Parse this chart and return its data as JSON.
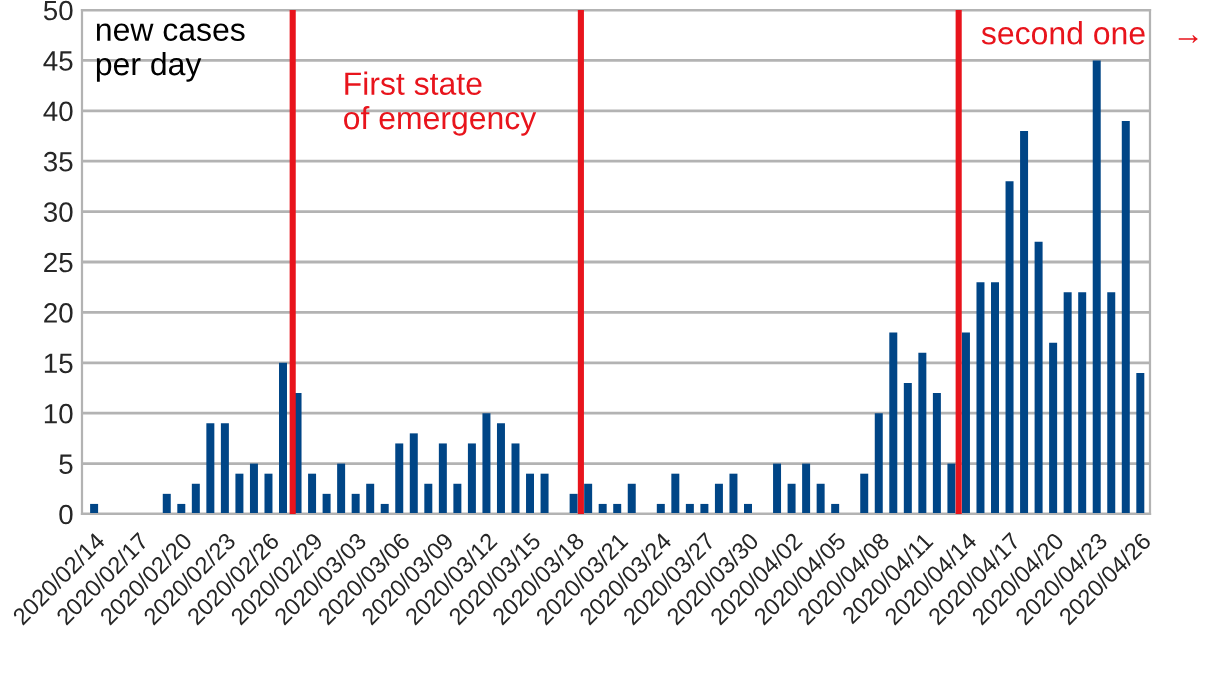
{
  "chart_data": {
    "type": "bar",
    "ylabel": "new cases\nper day",
    "x": [
      "2020-02-14",
      "2020-02-15",
      "2020-02-16",
      "2020-02-17",
      "2020-02-18",
      "2020-02-19",
      "2020-02-20",
      "2020-02-21",
      "2020-02-22",
      "2020-02-23",
      "2020-02-24",
      "2020-02-25",
      "2020-02-26",
      "2020-02-27",
      "2020-02-28",
      "2020-02-29",
      "2020-03-01",
      "2020-03-02",
      "2020-03-03",
      "2020-03-04",
      "2020-03-05",
      "2020-03-06",
      "2020-03-07",
      "2020-03-08",
      "2020-03-09",
      "2020-03-10",
      "2020-03-11",
      "2020-03-12",
      "2020-03-13",
      "2020-03-14",
      "2020-03-15",
      "2020-03-16",
      "2020-03-17",
      "2020-03-18",
      "2020-03-19",
      "2020-03-20",
      "2020-03-21",
      "2020-03-22",
      "2020-03-23",
      "2020-03-24",
      "2020-03-25",
      "2020-03-26",
      "2020-03-27",
      "2020-03-28",
      "2020-03-29",
      "2020-03-30",
      "2020-03-31",
      "2020-04-01",
      "2020-04-02",
      "2020-04-03",
      "2020-04-04",
      "2020-04-05",
      "2020-04-06",
      "2020-04-07",
      "2020-04-08",
      "2020-04-09",
      "2020-04-10",
      "2020-04-11",
      "2020-04-12",
      "2020-04-13",
      "2020-04-14",
      "2020-04-15",
      "2020-04-16",
      "2020-04-17",
      "2020-04-18",
      "2020-04-19",
      "2020-04-20",
      "2020-04-21",
      "2020-04-22",
      "2020-04-23",
      "2020-04-24",
      "2020-04-25",
      "2020-04-26"
    ],
    "values": [
      1,
      0,
      0,
      0,
      0,
      2,
      1,
      3,
      9,
      9,
      4,
      5,
      4,
      15,
      12,
      4,
      2,
      5,
      2,
      3,
      1,
      7,
      8,
      3,
      7,
      3,
      7,
      10,
      9,
      7,
      4,
      4,
      0,
      2,
      3,
      1,
      1,
      3,
      0,
      1,
      4,
      1,
      1,
      3,
      4,
      1,
      0,
      5,
      3,
      5,
      3,
      1,
      0,
      4,
      10,
      18,
      13,
      16,
      12,
      5,
      18,
      23,
      23,
      33,
      38,
      27,
      17,
      22,
      22,
      45,
      22,
      39,
      14
    ],
    "color": "#004586",
    "xlim": [
      "2020-02-13T04:00",
      "2020-04-26T16:00"
    ],
    "xticks": [
      {
        "value": "2020-02-14",
        "label": "2020/02/14"
      },
      {
        "value": "2020-02-17",
        "label": "2020/02/17"
      },
      {
        "value": "2020-02-20",
        "label": "2020/02/20"
      },
      {
        "value": "2020-02-23",
        "label": "2020/02/23"
      },
      {
        "value": "2020-02-26",
        "label": "2020/02/26"
      },
      {
        "value": "2020-02-29",
        "label": "2020/02/29"
      },
      {
        "value": "2020-03-03",
        "label": "2020/03/03"
      },
      {
        "value": "2020-03-06",
        "label": "2020/03/06"
      },
      {
        "value": "2020-03-09",
        "label": "2020/03/09"
      },
      {
        "value": "2020-03-12",
        "label": "2020/03/12"
      },
      {
        "value": "2020-03-15",
        "label": "2020/03/15"
      },
      {
        "value": "2020-03-18",
        "label": "2020/03/18"
      },
      {
        "value": "2020-03-21",
        "label": "2020/03/21"
      },
      {
        "value": "2020-03-24",
        "label": "2020/03/24"
      },
      {
        "value": "2020-03-27",
        "label": "2020/03/27"
      },
      {
        "value": "2020-03-30",
        "label": "2020/03/30"
      },
      {
        "value": "2020-04-02",
        "label": "2020/04/02"
      },
      {
        "value": "2020-04-05",
        "label": "2020/04/05"
      },
      {
        "value": "2020-04-08",
        "label": "2020/04/08"
      },
      {
        "value": "2020-04-11",
        "label": "2020/04/11"
      },
      {
        "value": "2020-04-14",
        "label": "2020/04/14"
      },
      {
        "value": "2020-04-17",
        "label": "2020/04/17"
      },
      {
        "value": "2020-04-20",
        "label": "2020/04/20"
      },
      {
        "value": "2020-04-23",
        "label": "2020/04/23"
      },
      {
        "value": "2020-04-26",
        "label": "2020/04/26"
      }
    ],
    "ylim": [
      0,
      50
    ],
    "yticks": [
      0,
      5,
      10,
      15,
      20,
      25,
      30,
      35,
      40,
      45,
      50
    ],
    "grid": "y",
    "ref_lines": [
      {
        "axis": "x",
        "value": "2020-02-27T16:00",
        "label": "First state\nof emergency",
        "color": "#e8141c"
      },
      {
        "axis": "x",
        "value": "2020-03-18T12:00",
        "color": "#e8141c"
      },
      {
        "axis": "x",
        "value": "2020-04-13T12:00",
        "label": "second one",
        "color": "#e8141c"
      }
    ],
    "annotations": [
      "→"
    ]
  }
}
